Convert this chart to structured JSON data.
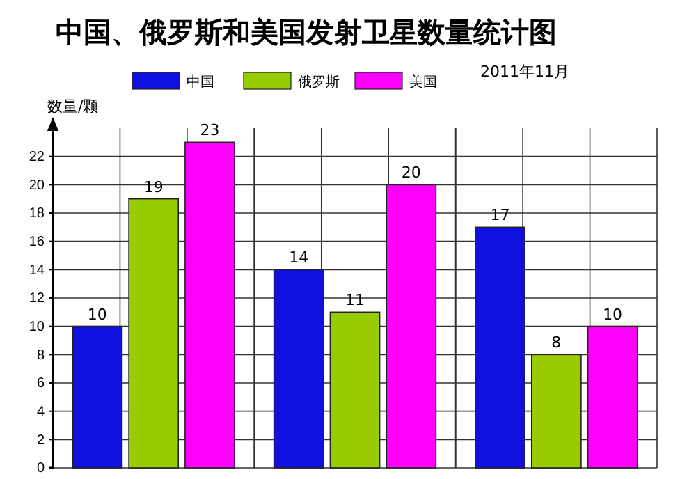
{
  "chart_data": {
    "type": "bar",
    "title": "中国、俄罗斯和美国发射卫星数量统计图",
    "subtitle": "2011年11月",
    "ylabel": "数量/颗",
    "categories": [
      null,
      null,
      null
    ],
    "series": [
      {
        "name": "中国",
        "color": "#1010e0",
        "values": [
          10,
          14,
          17
        ]
      },
      {
        "name": "俄罗斯",
        "color": "#99cc00",
        "values": [
          19,
          11,
          8
        ]
      },
      {
        "name": "美国",
        "color": "#ff00ff",
        "values": [
          23,
          20,
          10
        ]
      }
    ],
    "ylim": [
      0,
      24
    ],
    "yticks": [
      0,
      2,
      4,
      6,
      8,
      10,
      12,
      14,
      16,
      18,
      20,
      22
    ],
    "grid": true,
    "legend": "top",
    "data_labels": true
  }
}
